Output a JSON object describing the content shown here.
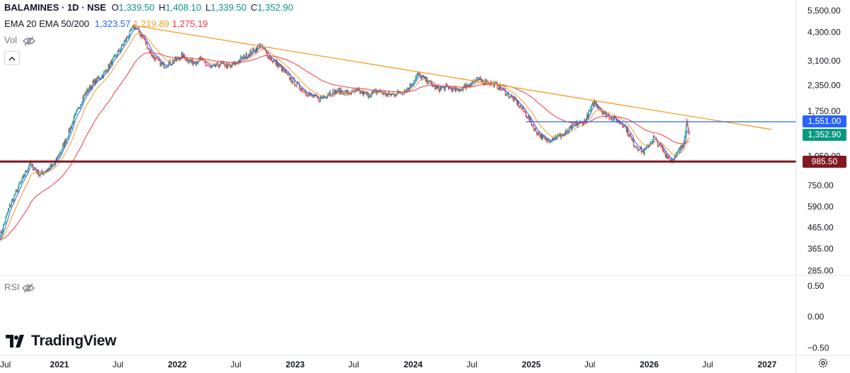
{
  "header": {
    "symbol": "BALAMINES · 1D · NSE",
    "ohlc": [
      {
        "key": "O",
        "value": "1,339.50"
      },
      {
        "key": "H",
        "value": "1,408.10"
      },
      {
        "key": "L",
        "value": "1,339.50"
      },
      {
        "key": "C",
        "value": "1,352.90"
      }
    ],
    "ema_label": "EMA 20 EMA 50/200",
    "ema_values": [
      {
        "value": "1,323.57",
        "color": "#2962ff"
      },
      {
        "value": "1,219.89",
        "color": "#f59d23"
      },
      {
        "value": "1,275.19",
        "color": "#f23645"
      }
    ]
  },
  "vol_label": "Vol",
  "rsi_label": "RSI",
  "branding": "TradingView",
  "colors": {
    "ema20": "#2962ff",
    "ema50": "#f59d23",
    "ema200": "#f23645",
    "up": "#089981",
    "down": "#f23645",
    "trendline": "#f59d23",
    "resistance": "#2962ff",
    "support": "#801922"
  },
  "price_tags": [
    {
      "value": "1,551.00",
      "price": 1551,
      "color": "#2962ff"
    },
    {
      "value": "1,352.90",
      "price": 1352.9,
      "color": "#089981"
    },
    {
      "value": "985.50",
      "price": 985.5,
      "color": "#801922"
    }
  ],
  "chart_data": {
    "type": "line",
    "series_style": "candlestick",
    "title": "BALAMINES · 1D · NSE",
    "yscale": "log",
    "ylim": [
      270,
      6200
    ],
    "y_ticks": [
      5500,
      4300,
      3100,
      2350,
      1750,
      1050,
      750,
      590,
      465,
      365,
      285
    ],
    "y_tick_labels": [
      "5,500.00",
      "4,300.00",
      "3,100.00",
      "2,350.00",
      "1,750.00",
      "1,050.00",
      "750.00",
      "590.00",
      "465.00",
      "365.00",
      "285.00"
    ],
    "x_ticks": [
      "Jul",
      "2021",
      "Jul",
      "2022",
      "Jul",
      "2023",
      "Jul",
      "2024",
      "Jul",
      "2025",
      "Jul",
      "2026",
      "Jul",
      "2027"
    ],
    "x_tick_dates": [
      "2020-07-01",
      "2021-01-01",
      "2021-07-01",
      "2022-01-01",
      "2022-07-01",
      "2023-01-01",
      "2023-07-01",
      "2024-01-01",
      "2024-07-01",
      "2025-01-01",
      "2025-07-01",
      "2026-01-01",
      "2026-07-01",
      "2027-01-01"
    ],
    "xlim": [
      "2020-07-01",
      "2027-04-01"
    ],
    "price_path": [
      [
        "2020-07-01",
        420
      ],
      [
        "2020-08-01",
        600
      ],
      [
        "2020-09-15",
        850
      ],
      [
        "2020-10-01",
        960
      ],
      [
        "2020-11-01",
        850
      ],
      [
        "2020-12-15",
        950
      ],
      [
        "2021-01-15",
        1200
      ],
      [
        "2021-02-15",
        1600
      ],
      [
        "2021-03-15",
        2050
      ],
      [
        "2021-04-15",
        2400
      ],
      [
        "2021-05-15",
        2650
      ],
      [
        "2021-06-15",
        3100
      ],
      [
        "2021-07-15",
        3700
      ],
      [
        "2021-08-20",
        4600
      ],
      [
        "2021-09-15",
        4100
      ],
      [
        "2021-10-15",
        3300
      ],
      [
        "2021-11-15",
        2950
      ],
      [
        "2021-12-15",
        3050
      ],
      [
        "2022-01-15",
        3300
      ],
      [
        "2022-02-15",
        3050
      ],
      [
        "2022-03-15",
        3150
      ],
      [
        "2022-04-15",
        2850
      ],
      [
        "2022-05-15",
        3000
      ],
      [
        "2022-06-15",
        2900
      ],
      [
        "2022-07-15",
        3150
      ],
      [
        "2022-08-15",
        3400
      ],
      [
        "2022-09-15",
        3700
      ],
      [
        "2022-10-15",
        3200
      ],
      [
        "2022-11-15",
        2900
      ],
      [
        "2022-12-15",
        2550
      ],
      [
        "2023-01-15",
        2300
      ],
      [
        "2023-02-15",
        2100
      ],
      [
        "2023-03-15",
        2000
      ],
      [
        "2023-04-15",
        2150
      ],
      [
        "2023-05-15",
        2200
      ],
      [
        "2023-06-15",
        2150
      ],
      [
        "2023-07-15",
        2200
      ],
      [
        "2023-08-15",
        2100
      ],
      [
        "2023-09-15",
        2200
      ],
      [
        "2023-10-15",
        2100
      ],
      [
        "2023-11-15",
        2150
      ],
      [
        "2023-12-15",
        2250
      ],
      [
        "2024-01-15",
        2650
      ],
      [
        "2024-02-15",
        2450
      ],
      [
        "2024-03-15",
        2250
      ],
      [
        "2024-04-15",
        2300
      ],
      [
        "2024-05-15",
        2200
      ],
      [
        "2024-06-15",
        2350
      ],
      [
        "2024-07-15",
        2500
      ],
      [
        "2024-08-15",
        2450
      ],
      [
        "2024-09-15",
        2350
      ],
      [
        "2024-10-15",
        2150
      ],
      [
        "2024-11-15",
        1950
      ],
      [
        "2024-12-15",
        1700
      ],
      [
        "2025-01-15",
        1400
      ],
      [
        "2025-02-15",
        1250
      ],
      [
        "2025-03-15",
        1300
      ],
      [
        "2025-04-15",
        1350
      ],
      [
        "2025-05-15",
        1500
      ],
      [
        "2025-06-15",
        1550
      ],
      [
        "2025-07-15",
        1950
      ],
      [
        "2025-08-15",
        1700
      ],
      [
        "2025-09-15",
        1600
      ],
      [
        "2025-10-15",
        1500
      ],
      [
        "2025-11-15",
        1200
      ],
      [
        "2025-12-15",
        1100
      ],
      [
        "2026-01-15",
        1300
      ],
      [
        "2026-02-15",
        1100
      ],
      [
        "2026-03-10",
        1000
      ],
      [
        "2026-03-25",
        1050
      ],
      [
        "2026-04-15",
        1200
      ],
      [
        "2026-04-28",
        1580
      ],
      [
        "2026-05-05",
        1352.9
      ]
    ],
    "ema_series": [
      {
        "name": "EMA 20",
        "last": 1323.57
      },
      {
        "name": "EMA 50",
        "last": 1219.89
      },
      {
        "name": "EMA 200",
        "last": 1275.19
      }
    ],
    "trendline": {
      "from": [
        "2021-08-15",
        4650
      ],
      "to": [
        "2027-01-15",
        1420
      ]
    },
    "horizontal_levels": [
      {
        "price": 1551,
        "from": "2024-12-15",
        "to": "2027-04-01"
      },
      {
        "price": 985.5,
        "from": "2020-07-01",
        "to": "2027-04-01"
      }
    ],
    "rsi_axis": {
      "ticks": [
        0.5,
        0,
        -0.5
      ],
      "tick_labels": [
        "0.50",
        "0.00",
        "−0.50"
      ],
      "ylim": [
        -0.6,
        0.6
      ]
    }
  }
}
